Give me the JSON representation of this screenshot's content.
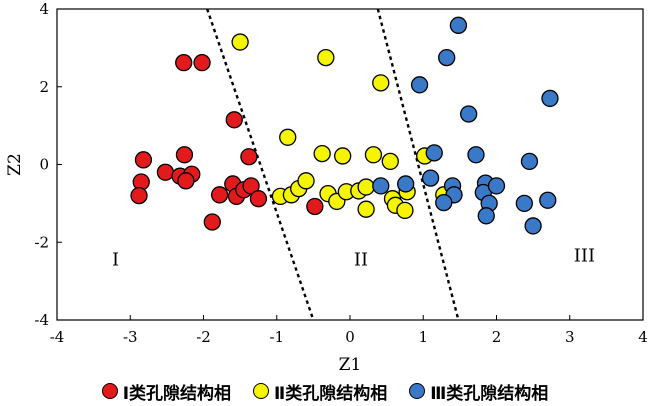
{
  "chart_data": {
    "type": "scatter",
    "title": "",
    "xlabel": "Z1",
    "ylabel": "Z2",
    "xlim": [
      -4,
      4
    ],
    "ylim": [
      -4,
      4
    ],
    "xticks": [
      "-4",
      "-3",
      "-2",
      "-1",
      "0",
      "1",
      "2",
      "3",
      "4"
    ],
    "yticks": [
      "-4",
      "-2",
      "0",
      "2",
      "4"
    ],
    "grid": false,
    "legend_placement": "bottom",
    "region_labels": [
      {
        "text": "I",
        "x": -3.2,
        "y": -2.6
      },
      {
        "text": "II",
        "x": 0.15,
        "y": -2.6
      },
      {
        "text": "III",
        "x": 3.2,
        "y": -2.5
      }
    ],
    "boundaries": [
      {
        "x1": -1.95,
        "y1": 4.0,
        "x2": -0.5,
        "y2": -4.0
      },
      {
        "x1": 0.38,
        "y1": 4.0,
        "x2": 1.48,
        "y2": -4.0
      }
    ],
    "series": [
      {
        "name": "Ⅰ类孔隙结构相",
        "color": "#e31a1c",
        "points": [
          [
            -2.27,
            2.62
          ],
          [
            -2.02,
            2.62
          ],
          [
            -1.58,
            1.15
          ],
          [
            -1.38,
            0.2
          ],
          [
            -2.82,
            0.12
          ],
          [
            -2.26,
            0.25
          ],
          [
            -2.52,
            -0.2
          ],
          [
            -2.32,
            -0.3
          ],
          [
            -2.16,
            -0.25
          ],
          [
            -2.24,
            -0.42
          ],
          [
            -2.85,
            -0.45
          ],
          [
            -2.88,
            -0.8
          ],
          [
            -1.78,
            -0.78
          ],
          [
            -1.6,
            -0.5
          ],
          [
            -1.55,
            -0.82
          ],
          [
            -1.45,
            -0.65
          ],
          [
            -1.35,
            -0.55
          ],
          [
            -1.25,
            -0.88
          ],
          [
            -1.88,
            -1.48
          ],
          [
            -0.48,
            -1.08
          ]
        ]
      },
      {
        "name": "Ⅱ类孔隙结构相",
        "color": "#f5f500",
        "points": [
          [
            -1.5,
            3.15
          ],
          [
            -0.33,
            2.75
          ],
          [
            0.42,
            2.1
          ],
          [
            -0.85,
            0.7
          ],
          [
            -0.38,
            0.28
          ],
          [
            -0.1,
            0.22
          ],
          [
            0.32,
            0.25
          ],
          [
            0.55,
            0.08
          ],
          [
            1.02,
            0.22
          ],
          [
            -0.95,
            -0.82
          ],
          [
            -0.8,
            -0.78
          ],
          [
            -0.7,
            -0.62
          ],
          [
            -0.6,
            -0.42
          ],
          [
            -0.3,
            -0.75
          ],
          [
            -0.18,
            -0.95
          ],
          [
            -0.05,
            -0.7
          ],
          [
            0.12,
            -0.68
          ],
          [
            0.22,
            -0.58
          ],
          [
            0.22,
            -1.15
          ],
          [
            0.58,
            -0.88
          ],
          [
            0.62,
            -1.05
          ],
          [
            0.78,
            -0.7
          ],
          [
            0.75,
            -1.18
          ],
          [
            1.28,
            -0.78
          ]
        ]
      },
      {
        "name": "Ⅲ类孔隙结构相",
        "color": "#3a78c8",
        "points": [
          [
            1.48,
            3.58
          ],
          [
            1.32,
            2.75
          ],
          [
            0.95,
            2.05
          ],
          [
            2.73,
            1.7
          ],
          [
            1.62,
            1.3
          ],
          [
            1.15,
            0.3
          ],
          [
            1.72,
            0.25
          ],
          [
            2.45,
            0.08
          ],
          [
            0.42,
            -0.55
          ],
          [
            0.76,
            -0.5
          ],
          [
            1.1,
            -0.35
          ],
          [
            1.4,
            -0.55
          ],
          [
            1.42,
            -0.78
          ],
          [
            1.28,
            -0.98
          ],
          [
            1.85,
            -0.48
          ],
          [
            1.82,
            -0.72
          ],
          [
            2.0,
            -0.55
          ],
          [
            1.9,
            -1.0
          ],
          [
            1.86,
            -1.32
          ],
          [
            2.38,
            -1.0
          ],
          [
            2.7,
            -0.92
          ],
          [
            2.5,
            -1.58
          ]
        ]
      }
    ]
  }
}
